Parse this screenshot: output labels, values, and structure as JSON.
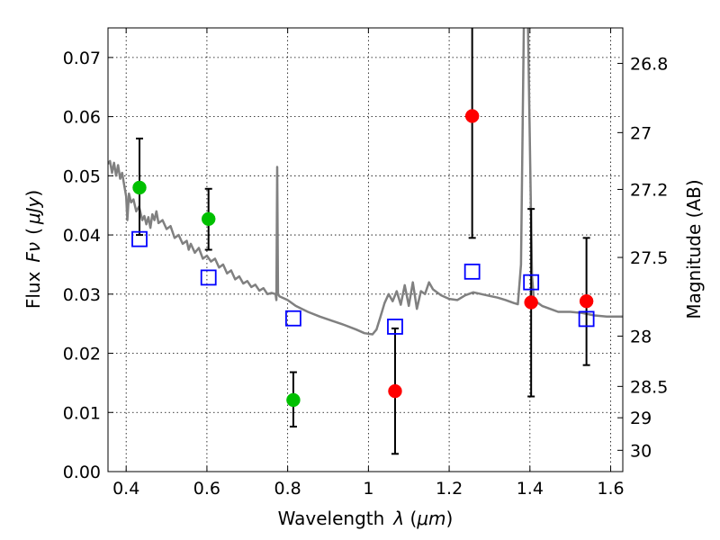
{
  "chart_data": {
    "type": "scatter",
    "title": "",
    "xlabel": "Wavelength",
    "xlabel_symbol": "λ",
    "xlabel_unit": "μm",
    "ylabel": "Flux",
    "ylabel_symbol": "Fν",
    "ylabel_unit": "μJy",
    "y2label": "Magnitude (AB)",
    "xlim": [
      0.355,
      1.63
    ],
    "ylim": [
      0.0,
      0.075
    ],
    "grid": true,
    "x_ticks": [
      {
        "value": 0.4,
        "label": "0.4"
      },
      {
        "value": 0.6,
        "label": "0.6"
      },
      {
        "value": 0.8,
        "label": "0.8"
      },
      {
        "value": 1.0,
        "label": "1"
      },
      {
        "value": 1.2,
        "label": "1.2"
      },
      {
        "value": 1.4,
        "label": "1.4"
      },
      {
        "value": 1.6,
        "label": "1.6"
      }
    ],
    "y_ticks": [
      {
        "value": 0.0,
        "label": "0.00"
      },
      {
        "value": 0.01,
        "label": "0.01"
      },
      {
        "value": 0.02,
        "label": "0.02"
      },
      {
        "value": 0.03,
        "label": "0.03"
      },
      {
        "value": 0.04,
        "label": "0.04"
      },
      {
        "value": 0.05,
        "label": "0.05"
      },
      {
        "value": 0.06,
        "label": "0.06"
      },
      {
        "value": 0.07,
        "label": "0.07"
      }
    ],
    "y2_ticks": [
      {
        "flux": 0.069,
        "label": "26.8"
      },
      {
        "flux": 0.0573,
        "label": "27"
      },
      {
        "flux": 0.0477,
        "label": "27.2"
      },
      {
        "flux": 0.0362,
        "label": "27.5"
      },
      {
        "flux": 0.0229,
        "label": "28"
      },
      {
        "flux": 0.0144,
        "label": "28.5"
      },
      {
        "flux": 0.0091,
        "label": "29"
      },
      {
        "flux": 0.0036,
        "label": "30"
      }
    ],
    "series": [
      {
        "kind": "line",
        "color": "#808080",
        "points": [
          [
            0.355,
            0.052
          ],
          [
            0.36,
            0.0525
          ],
          [
            0.365,
            0.0505
          ],
          [
            0.37,
            0.0522
          ],
          [
            0.375,
            0.05
          ],
          [
            0.38,
            0.0518
          ],
          [
            0.385,
            0.0495
          ],
          [
            0.39,
            0.0505
          ],
          [
            0.395,
            0.0485
          ],
          [
            0.4,
            0.0465
          ],
          [
            0.403,
            0.0425
          ],
          [
            0.407,
            0.047
          ],
          [
            0.412,
            0.0455
          ],
          [
            0.418,
            0.046
          ],
          [
            0.425,
            0.044
          ],
          [
            0.432,
            0.0448
          ],
          [
            0.44,
            0.0425
          ],
          [
            0.445,
            0.0432
          ],
          [
            0.45,
            0.0418
          ],
          [
            0.455,
            0.043
          ],
          [
            0.46,
            0.0412
          ],
          [
            0.465,
            0.0435
          ],
          [
            0.47,
            0.0425
          ],
          [
            0.475,
            0.044
          ],
          [
            0.48,
            0.042
          ],
          [
            0.49,
            0.0425
          ],
          [
            0.5,
            0.041
          ],
          [
            0.51,
            0.0415
          ],
          [
            0.52,
            0.0395
          ],
          [
            0.53,
            0.04
          ],
          [
            0.54,
            0.0385
          ],
          [
            0.55,
            0.039
          ],
          [
            0.555,
            0.0375
          ],
          [
            0.56,
            0.0385
          ],
          [
            0.57,
            0.037
          ],
          [
            0.58,
            0.0378
          ],
          [
            0.59,
            0.036
          ],
          [
            0.6,
            0.0365
          ],
          [
            0.61,
            0.0355
          ],
          [
            0.62,
            0.036
          ],
          [
            0.63,
            0.0345
          ],
          [
            0.64,
            0.035
          ],
          [
            0.65,
            0.0335
          ],
          [
            0.66,
            0.034
          ],
          [
            0.67,
            0.0325
          ],
          [
            0.68,
            0.033
          ],
          [
            0.69,
            0.0318
          ],
          [
            0.7,
            0.0322
          ],
          [
            0.71,
            0.0312
          ],
          [
            0.72,
            0.0316
          ],
          [
            0.73,
            0.0306
          ],
          [
            0.74,
            0.031
          ],
          [
            0.75,
            0.03
          ],
          [
            0.76,
            0.0302
          ],
          [
            0.77,
            0.03
          ],
          [
            0.772,
            0.029
          ],
          [
            0.774,
            0.0515
          ],
          [
            0.776,
            0.03
          ],
          [
            0.78,
            0.0296
          ],
          [
            0.8,
            0.029
          ],
          [
            0.82,
            0.028
          ],
          [
            0.85,
            0.027
          ],
          [
            0.88,
            0.0262
          ],
          [
            0.91,
            0.0255
          ],
          [
            0.94,
            0.0248
          ],
          [
            0.97,
            0.024
          ],
          [
            0.99,
            0.0234
          ],
          [
            1.01,
            0.0232
          ],
          [
            1.02,
            0.024
          ],
          [
            1.03,
            0.0262
          ],
          [
            1.04,
            0.0285
          ],
          [
            1.05,
            0.03
          ],
          [
            1.06,
            0.0288
          ],
          [
            1.07,
            0.0305
          ],
          [
            1.08,
            0.0282
          ],
          [
            1.09,
            0.0315
          ],
          [
            1.1,
            0.028
          ],
          [
            1.11,
            0.032
          ],
          [
            1.12,
            0.0275
          ],
          [
            1.13,
            0.0305
          ],
          [
            1.14,
            0.03
          ],
          [
            1.15,
            0.032
          ],
          [
            1.16,
            0.0308
          ],
          [
            1.18,
            0.0298
          ],
          [
            1.2,
            0.0292
          ],
          [
            1.22,
            0.029
          ],
          [
            1.24,
            0.0298
          ],
          [
            1.26,
            0.0303
          ],
          [
            1.28,
            0.03
          ],
          [
            1.3,
            0.0297
          ],
          [
            1.32,
            0.0294
          ],
          [
            1.34,
            0.029
          ],
          [
            1.36,
            0.0285
          ],
          [
            1.37,
            0.0283
          ],
          [
            1.378,
            0.035
          ],
          [
            1.385,
            0.076
          ],
          [
            1.395,
            0.076
          ],
          [
            1.405,
            0.033
          ],
          [
            1.41,
            0.029
          ],
          [
            1.43,
            0.028
          ],
          [
            1.45,
            0.0275
          ],
          [
            1.47,
            0.027
          ],
          [
            1.5,
            0.027
          ],
          [
            1.53,
            0.0268
          ],
          [
            1.56,
            0.0264
          ],
          [
            1.59,
            0.0262
          ],
          [
            1.63,
            0.0262
          ]
        ]
      },
      {
        "kind": "points",
        "color": "#00c000",
        "marker": "circle",
        "points": [
          {
            "x": 0.433,
            "y": 0.048,
            "err_low": 0.04,
            "err_high": 0.0563
          },
          {
            "x": 0.604,
            "y": 0.0427,
            "err_low": 0.0375,
            "err_high": 0.0478
          },
          {
            "x": 0.814,
            "y": 0.0121,
            "err_low": 0.0076,
            "err_high": 0.0168
          }
        ]
      },
      {
        "kind": "points",
        "color": "#ff0000",
        "marker": "circle",
        "points": [
          {
            "x": 1.066,
            "y": 0.0136,
            "err_low": 0.003,
            "err_high": 0.0242
          },
          {
            "x": 1.257,
            "y": 0.0601,
            "err_low": 0.0395,
            "err_high": 0.076
          },
          {
            "x": 1.403,
            "y": 0.0286,
            "err_low": 0.0127,
            "err_high": 0.0444
          },
          {
            "x": 1.54,
            "y": 0.0288,
            "err_low": 0.018,
            "err_high": 0.0395
          }
        ]
      },
      {
        "kind": "points",
        "color": "#0000ff",
        "marker": "open-square",
        "points": [
          {
            "x": 0.433,
            "y": 0.0393
          },
          {
            "x": 0.604,
            "y": 0.0328
          },
          {
            "x": 0.814,
            "y": 0.0259
          },
          {
            "x": 1.066,
            "y": 0.0245
          },
          {
            "x": 1.257,
            "y": 0.0338
          },
          {
            "x": 1.403,
            "y": 0.032
          },
          {
            "x": 1.54,
            "y": 0.0258
          }
        ]
      }
    ]
  }
}
